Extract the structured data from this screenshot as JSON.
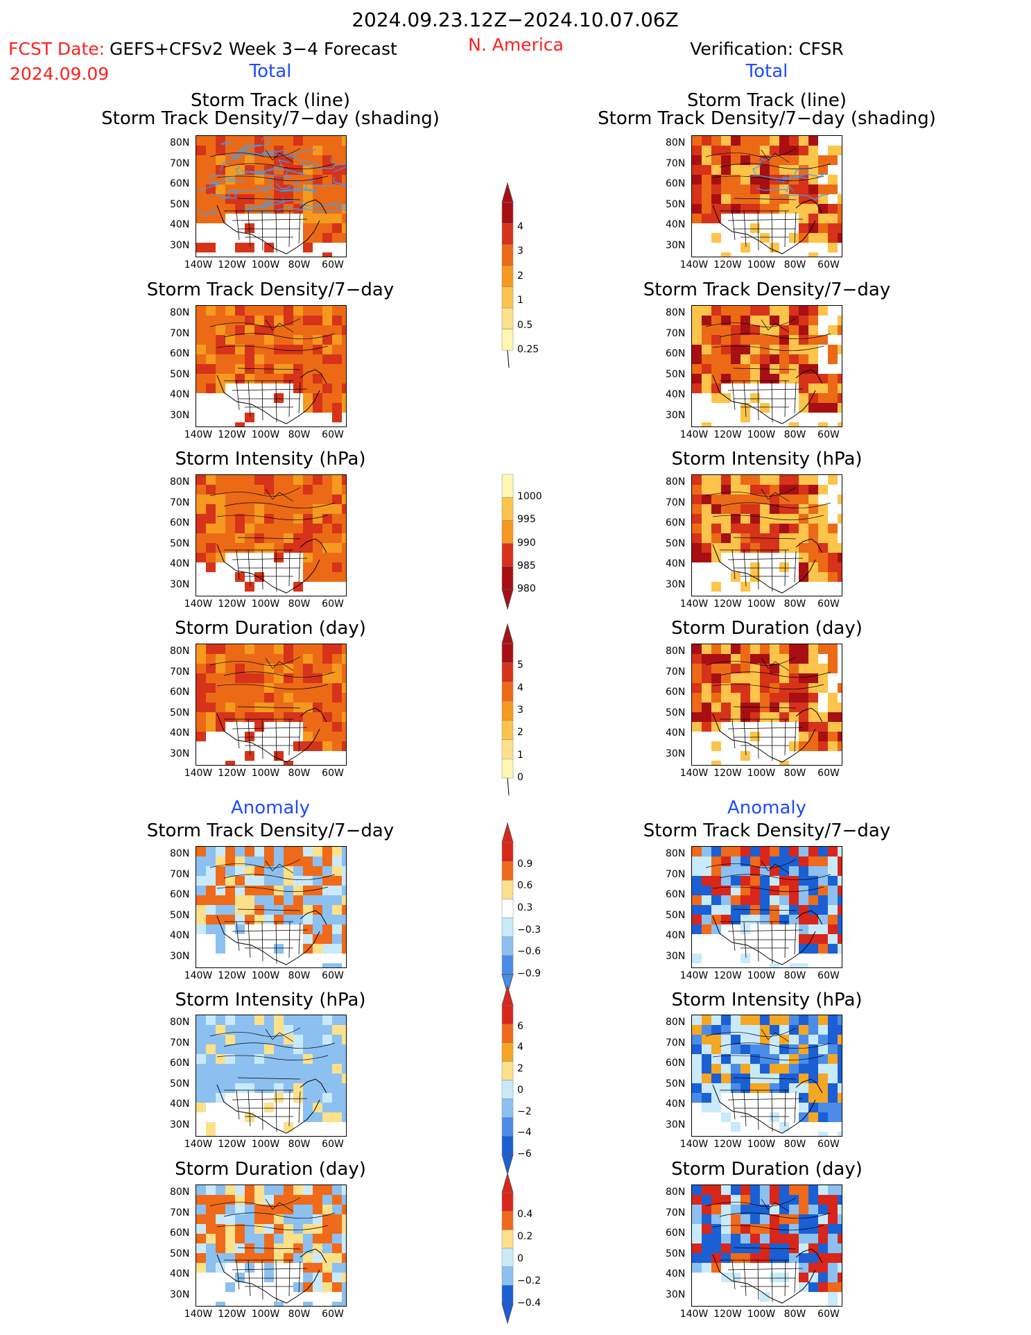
{
  "header": {
    "period": "2024.09.23.12Z−2024.10.07.06Z",
    "fcst_label": "FCST Date:",
    "model": "GEFS+CFSv2 Week 3−4 Forecast",
    "fcst_date": "2024.09.09",
    "region": "N. America",
    "verification": "Verification: CFSR",
    "total_left": "Total",
    "total_right": "Total",
    "anomaly_left": "Anomaly",
    "anomaly_right": "Anomaly"
  },
  "panels": {
    "track_line": [
      "Storm Track (line)",
      "Storm Track Density/7−day (shading)"
    ],
    "density": "Storm Track Density/7−day",
    "intensity": "Storm Intensity (hPa)",
    "duration": "Storm Duration (day)"
  },
  "axes": {
    "lat": [
      "80N",
      "70N",
      "60N",
      "50N",
      "40N",
      "30N"
    ],
    "lon": [
      "140W",
      "120W",
      "100W",
      "80W",
      "60W"
    ]
  },
  "colorbars": {
    "density_total": [
      "4",
      "3",
      "2",
      "1",
      "0.5",
      "0.25"
    ],
    "intensity_total": [
      "1000",
      "995",
      "990",
      "985",
      "980"
    ],
    "duration_total": [
      "5",
      "4",
      "3",
      "2",
      "1",
      "0"
    ],
    "density_anom": [
      "0.9",
      "0.6",
      "0.3",
      "−0.3",
      "−0.6",
      "−0.9"
    ],
    "intensity_anom": [
      "6",
      "4",
      "2",
      "0",
      "−2",
      "−4",
      "−6"
    ],
    "duration_anom": [
      "0.4",
      "0.2",
      "0",
      "−0.2",
      "−0.4"
    ]
  },
  "colors": {
    "total_scale": [
      "#fff7b3",
      "#fde08a",
      "#fcc44a",
      "#f59a1e",
      "#ec6a16",
      "#d6331a",
      "#a70f12"
    ],
    "anom_scale": [
      "#1a5fd4",
      "#4a8ce8",
      "#8cc0f0",
      "#c8eafa",
      "#ffffff",
      "#fde08a",
      "#f5a623",
      "#ef6a1a",
      "#d9261a"
    ]
  }
}
